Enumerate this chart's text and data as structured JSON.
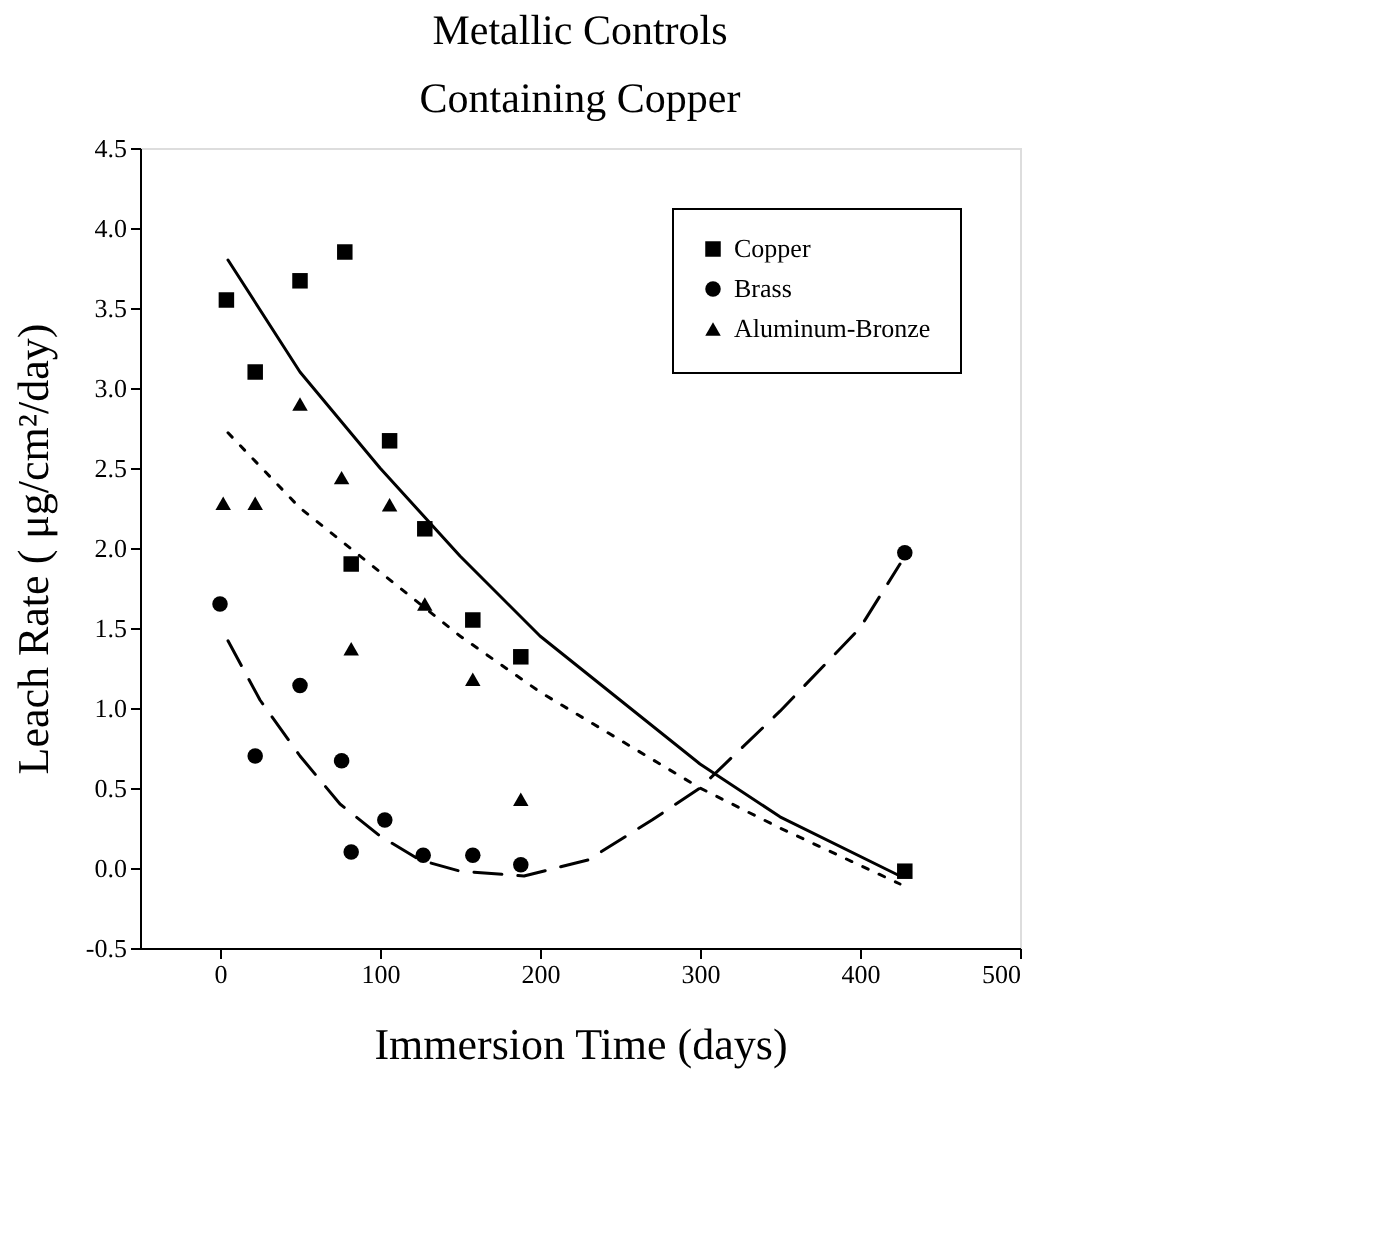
{
  "chart_data": {
    "type": "scatter",
    "title": [
      "Metallic Controls",
      "Containing Copper"
    ],
    "xlabel": "Immersion Time (days)",
    "ylabel": "Leach Rate (  μg/cm²/day)",
    "xlim": [
      -50,
      500
    ],
    "xticks": [
      0,
      100,
      200,
      300,
      400,
      500
    ],
    "ylim": [
      -0.5,
      4.5
    ],
    "yticks": [
      {
        "value": -0.5,
        "label": "-0.5"
      },
      {
        "value": 0,
        "label": "0.0"
      },
      {
        "value": 0.5,
        "label": "0.5"
      },
      {
        "value": 1,
        "label": "1.0"
      },
      {
        "value": 1.5,
        "label": "1.5"
      },
      {
        "value": 2,
        "label": "2.0"
      },
      {
        "value": 2.5,
        "label": "2.5"
      },
      {
        "value": 3,
        "label": "3.0"
      },
      {
        "value": 3.5,
        "label": "3.5"
      },
      {
        "value": 4,
        "label": "4.0"
      },
      {
        "value": 4.5,
        "label": "4.5"
      }
    ],
    "grid": false,
    "legend": "top right",
    "series": [
      {
        "name": "Copper",
        "color": "#000000",
        "marker": "square",
        "x": [
          4,
          22,
          50,
          78,
          82,
          106,
          128,
          158,
          188,
          428
        ],
        "values": [
          3.55,
          3.1,
          3.67,
          3.85,
          1.9,
          2.67,
          2.12,
          1.55,
          1.32,
          -0.02
        ]
      },
      {
        "name": "Brass",
        "color": "#000000",
        "marker": "circle",
        "x": [
          0,
          22,
          50,
          76,
          82,
          103,
          127,
          158,
          188,
          428
        ],
        "values": [
          1.65,
          0.7,
          1.14,
          0.67,
          0.1,
          0.3,
          0.08,
          0.08,
          0.02,
          1.97
        ]
      },
      {
        "name": "Aluminum-Bronze",
        "color": "#000000",
        "marker": "triangle",
        "x": [
          2,
          22,
          50,
          76,
          82,
          106,
          128,
          158,
          188
        ],
        "values": [
          2.28,
          2.28,
          2.9,
          2.44,
          1.37,
          2.27,
          1.65,
          1.18,
          0.43
        ]
      },
      {
        "type": "line",
        "color": "#000000",
        "line_style": "solid",
        "marker": "none",
        "x": [
          5,
          50,
          100,
          150,
          200,
          250,
          300,
          350,
          425
        ],
        "values": [
          3.8,
          3.1,
          2.5,
          1.95,
          1.45,
          1.05,
          0.65,
          0.32,
          -0.05
        ]
      },
      {
        "type": "line",
        "color": "#000000",
        "line_style": "dotted",
        "marker": "none",
        "x": [
          5,
          50,
          100,
          150,
          200,
          250,
          300,
          350,
          425
        ],
        "values": [
          2.72,
          2.25,
          1.85,
          1.45,
          1.1,
          0.8,
          0.5,
          0.25,
          -0.1
        ]
      },
      {
        "type": "line",
        "color": "#000000",
        "line_style": "dashed",
        "marker": "none",
        "x": [
          5,
          25,
          50,
          75,
          100,
          125,
          150,
          190,
          230,
          270,
          300,
          350,
          400,
          425
        ],
        "values": [
          1.42,
          1.05,
          0.7,
          0.4,
          0.2,
          0.05,
          -0.02,
          -0.05,
          0.05,
          0.3,
          0.5,
          0.98,
          1.5,
          1.9
        ]
      }
    ]
  }
}
